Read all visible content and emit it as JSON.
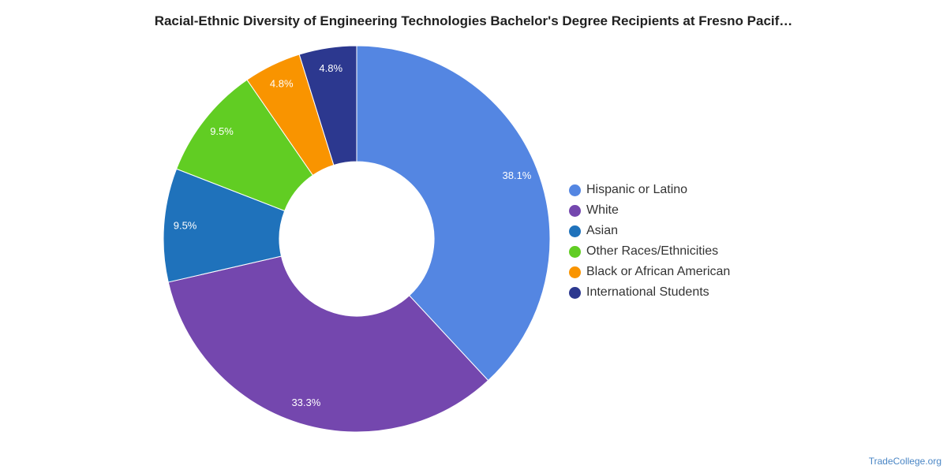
{
  "chart_data": {
    "type": "pie",
    "title": "Racial-Ethnic Diversity of Engineering Technologies Bachelor's Degree Recipients at Fresno Pacif…",
    "donut": true,
    "legend_position": "right",
    "series": [
      {
        "name": "Hispanic or Latino",
        "value": 38.1,
        "label": "38.1%",
        "color": "#5486e2"
      },
      {
        "name": "White",
        "value": 33.3,
        "label": "33.3%",
        "color": "#7447ae"
      },
      {
        "name": "Asian",
        "value": 9.5,
        "label": "9.5%",
        "color": "#1f72bb"
      },
      {
        "name": "Other Races/Ethnicities",
        "value": 9.5,
        "label": "9.5%",
        "color": "#61cd23"
      },
      {
        "name": "Black or African American",
        "value": 4.8,
        "label": "4.8%",
        "color": "#f99400"
      },
      {
        "name": "International Students",
        "value": 4.8,
        "label": "4.8%",
        "color": "#2c388f"
      }
    ]
  },
  "source": "TradeCollege.org"
}
